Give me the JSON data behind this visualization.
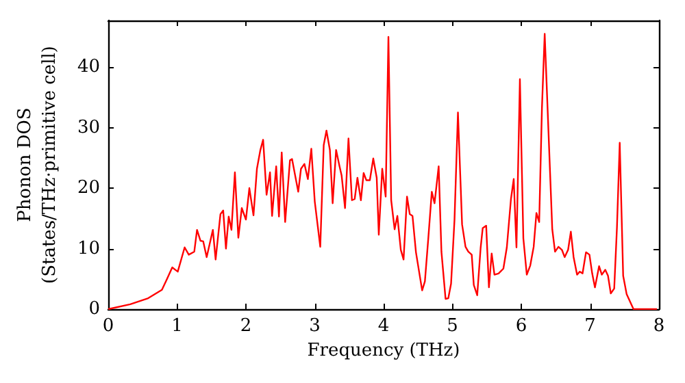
{
  "chart_data": {
    "type": "line",
    "xlabel": "Frequency (THz)",
    "ylabel": "Phonon DOS\n(States/THz·primitive cell)",
    "xlim": [
      0,
      8
    ],
    "ylim": [
      0,
      47.7
    ],
    "xticks": [
      0,
      1,
      2,
      3,
      4,
      5,
      6,
      7,
      8
    ],
    "yticks": [
      0,
      10,
      20,
      30,
      40
    ],
    "grid": false,
    "marker": "none",
    "line_style": "solid",
    "series": [
      {
        "color": "#ff0000",
        "x": [
          0,
          0.32,
          0.58,
          0.78,
          0.85,
          0.93,
          1.01,
          1.11,
          1.17,
          1.25,
          1.29,
          1.34,
          1.38,
          1.43,
          1.52,
          1.56,
          1.63,
          1.67,
          1.71,
          1.75,
          1.79,
          1.84,
          1.89,
          1.94,
          2.0,
          2.05,
          2.11,
          2.16,
          2.21,
          2.25,
          2.3,
          2.35,
          2.38,
          2.44,
          2.48,
          2.52,
          2.57,
          2.64,
          2.67,
          2.76,
          2.8,
          2.85,
          2.9,
          2.95,
          3.0,
          3.08,
          3.13,
          3.17,
          3.22,
          3.26,
          3.31,
          3.36,
          3.39,
          3.44,
          3.49,
          3.54,
          3.58,
          3.62,
          3.67,
          3.71,
          3.75,
          3.8,
          3.85,
          3.9,
          3.93,
          3.98,
          4.03,
          4.07,
          4.11,
          4.16,
          4.2,
          4.25,
          4.29,
          4.34,
          4.38,
          4.42,
          4.47,
          4.56,
          4.6,
          4.65,
          4.7,
          4.74,
          4.8,
          4.84,
          4.9,
          4.94,
          4.98,
          5.03,
          5.08,
          5.14,
          5.19,
          5.23,
          5.28,
          5.31,
          5.36,
          5.41,
          5.44,
          5.49,
          5.53,
          5.57,
          5.61,
          5.67,
          5.74,
          5.79,
          5.85,
          5.89,
          5.93,
          5.98,
          6.03,
          6.08,
          6.13,
          6.18,
          6.22,
          6.26,
          6.3,
          6.34,
          6.45,
          6.49,
          6.54,
          6.59,
          6.63,
          6.68,
          6.72,
          6.76,
          6.81,
          6.85,
          6.89,
          6.94,
          6.99,
          7.03,
          7.07,
          7.13,
          7.17,
          7.22,
          7.26,
          7.3,
          7.35,
          7.39,
          7.43,
          7.48,
          7.53,
          7.63,
          7.97
        ],
        "values": [
          0,
          0.8,
          1.8,
          3.2,
          4.9,
          6.9,
          6.2,
          10.2,
          9,
          9.5,
          13.1,
          11.3,
          11.2,
          8.6,
          13.1,
          8.2,
          15.7,
          16.3,
          10,
          15.3,
          13.1,
          22.6,
          11.8,
          16.7,
          14.8,
          20,
          15.5,
          23.2,
          26.3,
          28,
          18.9,
          22.6,
          15.4,
          23.6,
          15.3,
          25.9,
          14.4,
          24.6,
          24.8,
          19.4,
          23.2,
          24,
          21.5,
          26.5,
          17.8,
          10.3,
          27.1,
          29.5,
          26.3,
          17.5,
          26.3,
          23.6,
          22.1,
          16.7,
          28.2,
          18,
          18.2,
          21.7,
          18,
          22.5,
          21.3,
          21.3,
          24.9,
          21.7,
          12.3,
          23.2,
          18.6,
          45,
          18,
          13.2,
          15.4,
          9.8,
          8.2,
          18.6,
          15.7,
          15.4,
          9.4,
          3.1,
          4.6,
          11.8,
          19.4,
          17.5,
          23.6,
          9.5,
          1.7,
          1.8,
          4.2,
          14.8,
          32.5,
          14,
          10.3,
          9.5,
          9,
          4,
          2.3,
          10.2,
          13.4,
          13.8,
          3.6,
          9.2,
          5.7,
          5.9,
          6.7,
          10.2,
          18.2,
          21.5,
          10.2,
          38,
          11.7,
          5.7,
          7.2,
          10.3,
          15.9,
          14.4,
          33.2,
          45.5,
          13.2,
          9.5,
          10.3,
          9.8,
          8.6,
          9.8,
          12.8,
          8.6,
          5.7,
          6.2,
          5.9,
          9.4,
          9,
          5.9,
          3.6,
          7.1,
          5.7,
          6.5,
          5.5,
          2.6,
          3.4,
          13.6,
          27.5,
          5.5,
          2.5,
          0,
          0
        ]
      }
    ]
  }
}
